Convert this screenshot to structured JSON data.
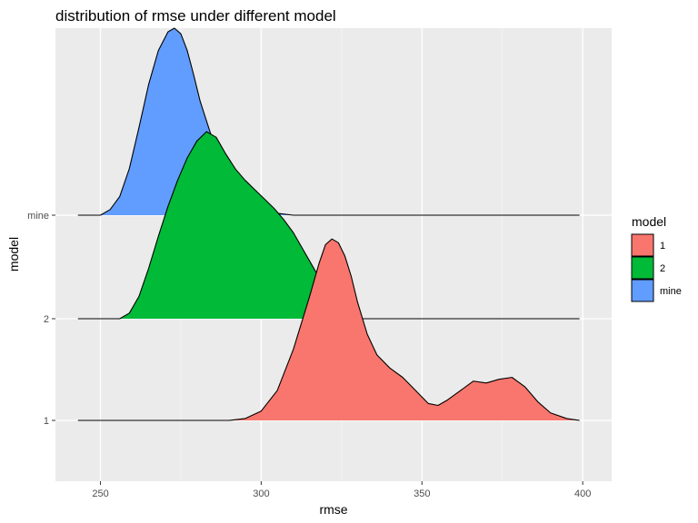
{
  "chart_data": {
    "type": "ridgeline",
    "title": "distribution of rmse  under  different model",
    "xlabel": "rmse",
    "ylabel": "model",
    "xlim": [
      236,
      409
    ],
    "x_ticks": [
      250,
      300,
      350,
      400
    ],
    "x_tick_labels": [
      "250",
      "300",
      "350",
      "400"
    ],
    "categories": [
      "1",
      "2",
      "mine"
    ],
    "legend": {
      "title": "model",
      "position": "right",
      "entries": [
        "1",
        "2",
        "mine"
      ]
    },
    "grid": true,
    "series": [
      {
        "name": "1",
        "color": "#F8766D",
        "baseline_x": [
          243,
          399
        ],
        "fill_range": [
          290,
          399
        ],
        "density": [
          [
            290,
            0.0
          ],
          [
            295,
            0.01
          ],
          [
            300,
            0.05
          ],
          [
            305,
            0.16
          ],
          [
            310,
            0.38
          ],
          [
            315,
            0.66
          ],
          [
            318,
            0.84
          ],
          [
            320,
            0.94
          ],
          [
            322,
            0.97
          ],
          [
            324,
            0.95
          ],
          [
            326,
            0.88
          ],
          [
            328,
            0.77
          ],
          [
            330,
            0.63
          ],
          [
            333,
            0.46
          ],
          [
            336,
            0.35
          ],
          [
            340,
            0.28
          ],
          [
            344,
            0.23
          ],
          [
            348,
            0.16
          ],
          [
            352,
            0.09
          ],
          [
            355,
            0.08
          ],
          [
            358,
            0.11
          ],
          [
            362,
            0.16
          ],
          [
            366,
            0.21
          ],
          [
            370,
            0.2
          ],
          [
            374,
            0.22
          ],
          [
            378,
            0.23
          ],
          [
            382,
            0.18
          ],
          [
            386,
            0.1
          ],
          [
            390,
            0.04
          ],
          [
            395,
            0.01
          ],
          [
            399,
            0.0
          ]
        ]
      },
      {
        "name": "2",
        "color": "#00BA38",
        "baseline_x": [
          243,
          399
        ],
        "fill_range": [
          256,
          330
        ],
        "density": [
          [
            256,
            0.0
          ],
          [
            259,
            0.03
          ],
          [
            262,
            0.12
          ],
          [
            265,
            0.27
          ],
          [
            268,
            0.44
          ],
          [
            271,
            0.6
          ],
          [
            274,
            0.74
          ],
          [
            277,
            0.86
          ],
          [
            280,
            0.95
          ],
          [
            283,
            1.0
          ],
          [
            286,
            0.97
          ],
          [
            289,
            0.88
          ],
          [
            292,
            0.8
          ],
          [
            295,
            0.74
          ],
          [
            298,
            0.69
          ],
          [
            301,
            0.64
          ],
          [
            304,
            0.59
          ],
          [
            307,
            0.53
          ],
          [
            310,
            0.46
          ],
          [
            313,
            0.37
          ],
          [
            316,
            0.28
          ],
          [
            319,
            0.19
          ],
          [
            322,
            0.11
          ],
          [
            325,
            0.05
          ],
          [
            328,
            0.02
          ],
          [
            330,
            0.0
          ]
        ]
      },
      {
        "name": "mine",
        "color": "#619CFF",
        "baseline_x": [
          243,
          399
        ],
        "fill_range": [
          250,
          310
        ],
        "density": [
          [
            250,
            0.0
          ],
          [
            253,
            0.03
          ],
          [
            256,
            0.1
          ],
          [
            259,
            0.25
          ],
          [
            262,
            0.47
          ],
          [
            265,
            0.7
          ],
          [
            268,
            0.88
          ],
          [
            271,
            0.98
          ],
          [
            273,
            1.0
          ],
          [
            275,
            0.97
          ],
          [
            277,
            0.88
          ],
          [
            279,
            0.75
          ],
          [
            281,
            0.61
          ],
          [
            284,
            0.45
          ],
          [
            287,
            0.3
          ],
          [
            290,
            0.18
          ],
          [
            293,
            0.1
          ],
          [
            296,
            0.05
          ],
          [
            300,
            0.02
          ],
          [
            305,
            0.01
          ],
          [
            310,
            0.0
          ]
        ]
      }
    ]
  }
}
